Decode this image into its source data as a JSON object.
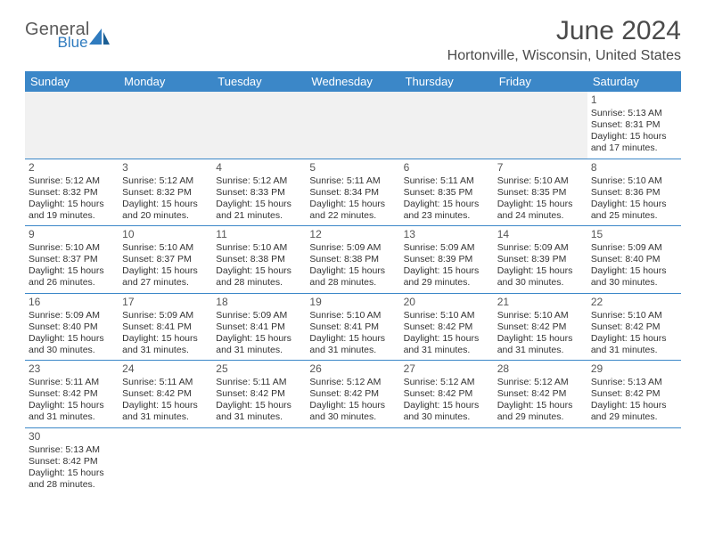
{
  "brand": {
    "general": "General",
    "blue": "Blue"
  },
  "title": "June 2024",
  "location": "Hortonville, Wisconsin, United States",
  "colors": {
    "header_bg": "#3b87c8",
    "header_text": "#ffffff",
    "row_border": "#3b87c8",
    "blank_bg": "#f1f1f1",
    "text": "#333333",
    "title_text": "#4a4a4a",
    "logo_gray": "#5a5a5a",
    "logo_blue": "#2f7bbf"
  },
  "day_headers": [
    "Sunday",
    "Monday",
    "Tuesday",
    "Wednesday",
    "Thursday",
    "Friday",
    "Saturday"
  ],
  "weeks": [
    [
      null,
      null,
      null,
      null,
      null,
      null,
      {
        "n": "1",
        "sr": "Sunrise: 5:13 AM",
        "ss": "Sunset: 8:31 PM",
        "d1": "Daylight: 15 hours",
        "d2": "and 17 minutes."
      }
    ],
    [
      {
        "n": "2",
        "sr": "Sunrise: 5:12 AM",
        "ss": "Sunset: 8:32 PM",
        "d1": "Daylight: 15 hours",
        "d2": "and 19 minutes."
      },
      {
        "n": "3",
        "sr": "Sunrise: 5:12 AM",
        "ss": "Sunset: 8:32 PM",
        "d1": "Daylight: 15 hours",
        "d2": "and 20 minutes."
      },
      {
        "n": "4",
        "sr": "Sunrise: 5:12 AM",
        "ss": "Sunset: 8:33 PM",
        "d1": "Daylight: 15 hours",
        "d2": "and 21 minutes."
      },
      {
        "n": "5",
        "sr": "Sunrise: 5:11 AM",
        "ss": "Sunset: 8:34 PM",
        "d1": "Daylight: 15 hours",
        "d2": "and 22 minutes."
      },
      {
        "n": "6",
        "sr": "Sunrise: 5:11 AM",
        "ss": "Sunset: 8:35 PM",
        "d1": "Daylight: 15 hours",
        "d2": "and 23 minutes."
      },
      {
        "n": "7",
        "sr": "Sunrise: 5:10 AM",
        "ss": "Sunset: 8:35 PM",
        "d1": "Daylight: 15 hours",
        "d2": "and 24 minutes."
      },
      {
        "n": "8",
        "sr": "Sunrise: 5:10 AM",
        "ss": "Sunset: 8:36 PM",
        "d1": "Daylight: 15 hours",
        "d2": "and 25 minutes."
      }
    ],
    [
      {
        "n": "9",
        "sr": "Sunrise: 5:10 AM",
        "ss": "Sunset: 8:37 PM",
        "d1": "Daylight: 15 hours",
        "d2": "and 26 minutes."
      },
      {
        "n": "10",
        "sr": "Sunrise: 5:10 AM",
        "ss": "Sunset: 8:37 PM",
        "d1": "Daylight: 15 hours",
        "d2": "and 27 minutes."
      },
      {
        "n": "11",
        "sr": "Sunrise: 5:10 AM",
        "ss": "Sunset: 8:38 PM",
        "d1": "Daylight: 15 hours",
        "d2": "and 28 minutes."
      },
      {
        "n": "12",
        "sr": "Sunrise: 5:09 AM",
        "ss": "Sunset: 8:38 PM",
        "d1": "Daylight: 15 hours",
        "d2": "and 28 minutes."
      },
      {
        "n": "13",
        "sr": "Sunrise: 5:09 AM",
        "ss": "Sunset: 8:39 PM",
        "d1": "Daylight: 15 hours",
        "d2": "and 29 minutes."
      },
      {
        "n": "14",
        "sr": "Sunrise: 5:09 AM",
        "ss": "Sunset: 8:39 PM",
        "d1": "Daylight: 15 hours",
        "d2": "and 30 minutes."
      },
      {
        "n": "15",
        "sr": "Sunrise: 5:09 AM",
        "ss": "Sunset: 8:40 PM",
        "d1": "Daylight: 15 hours",
        "d2": "and 30 minutes."
      }
    ],
    [
      {
        "n": "16",
        "sr": "Sunrise: 5:09 AM",
        "ss": "Sunset: 8:40 PM",
        "d1": "Daylight: 15 hours",
        "d2": "and 30 minutes."
      },
      {
        "n": "17",
        "sr": "Sunrise: 5:09 AM",
        "ss": "Sunset: 8:41 PM",
        "d1": "Daylight: 15 hours",
        "d2": "and 31 minutes."
      },
      {
        "n": "18",
        "sr": "Sunrise: 5:09 AM",
        "ss": "Sunset: 8:41 PM",
        "d1": "Daylight: 15 hours",
        "d2": "and 31 minutes."
      },
      {
        "n": "19",
        "sr": "Sunrise: 5:10 AM",
        "ss": "Sunset: 8:41 PM",
        "d1": "Daylight: 15 hours",
        "d2": "and 31 minutes."
      },
      {
        "n": "20",
        "sr": "Sunrise: 5:10 AM",
        "ss": "Sunset: 8:42 PM",
        "d1": "Daylight: 15 hours",
        "d2": "and 31 minutes."
      },
      {
        "n": "21",
        "sr": "Sunrise: 5:10 AM",
        "ss": "Sunset: 8:42 PM",
        "d1": "Daylight: 15 hours",
        "d2": "and 31 minutes."
      },
      {
        "n": "22",
        "sr": "Sunrise: 5:10 AM",
        "ss": "Sunset: 8:42 PM",
        "d1": "Daylight: 15 hours",
        "d2": "and 31 minutes."
      }
    ],
    [
      {
        "n": "23",
        "sr": "Sunrise: 5:11 AM",
        "ss": "Sunset: 8:42 PM",
        "d1": "Daylight: 15 hours",
        "d2": "and 31 minutes."
      },
      {
        "n": "24",
        "sr": "Sunrise: 5:11 AM",
        "ss": "Sunset: 8:42 PM",
        "d1": "Daylight: 15 hours",
        "d2": "and 31 minutes."
      },
      {
        "n": "25",
        "sr": "Sunrise: 5:11 AM",
        "ss": "Sunset: 8:42 PM",
        "d1": "Daylight: 15 hours",
        "d2": "and 31 minutes."
      },
      {
        "n": "26",
        "sr": "Sunrise: 5:12 AM",
        "ss": "Sunset: 8:42 PM",
        "d1": "Daylight: 15 hours",
        "d2": "and 30 minutes."
      },
      {
        "n": "27",
        "sr": "Sunrise: 5:12 AM",
        "ss": "Sunset: 8:42 PM",
        "d1": "Daylight: 15 hours",
        "d2": "and 30 minutes."
      },
      {
        "n": "28",
        "sr": "Sunrise: 5:12 AM",
        "ss": "Sunset: 8:42 PM",
        "d1": "Daylight: 15 hours",
        "d2": "and 29 minutes."
      },
      {
        "n": "29",
        "sr": "Sunrise: 5:13 AM",
        "ss": "Sunset: 8:42 PM",
        "d1": "Daylight: 15 hours",
        "d2": "and 29 minutes."
      }
    ],
    [
      {
        "n": "30",
        "sr": "Sunrise: 5:13 AM",
        "ss": "Sunset: 8:42 PM",
        "d1": "Daylight: 15 hours",
        "d2": "and 28 minutes."
      },
      null,
      null,
      null,
      null,
      null,
      null
    ]
  ]
}
